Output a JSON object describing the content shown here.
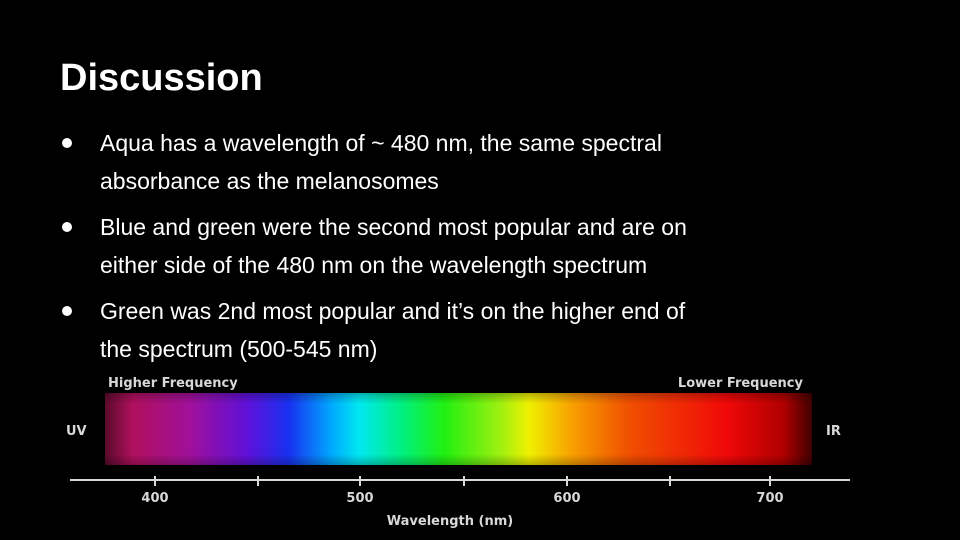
{
  "header": {
    "title": "Discussion"
  },
  "bullets": [
    {
      "lines": [
        "Aqua has a wavelength of ~ 480 nm, the same spectral",
        "absorbance as the melanosomes"
      ]
    },
    {
      "lines": [
        "Blue and green were the second most popular and are on",
        "either side of the 480 nm on the wavelength spectrum"
      ]
    },
    {
      "lines": [
        "Green was 2nd most popular and it’s on the higher end of",
        "the spectrum (500-545 nm)"
      ]
    }
  ],
  "figure": {
    "left_label": "Higher Frequency",
    "right_label": "Lower Frequency",
    "left_end": "UV",
    "right_end": "IR",
    "tick_labels": [
      "400",
      "500",
      "600",
      "700"
    ],
    "axis_label": "Wavelength (nm)"
  }
}
